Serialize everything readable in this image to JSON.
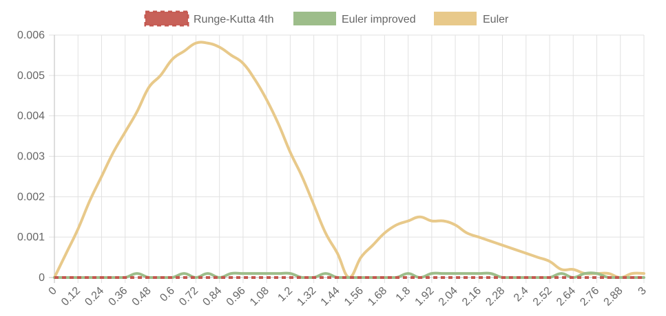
{
  "chart_data": {
    "type": "line",
    "title": "",
    "xlabel": "",
    "ylabel": "",
    "x": [
      0,
      0.06,
      0.12,
      0.18,
      0.24,
      0.3,
      0.36,
      0.42,
      0.48,
      0.54,
      0.6,
      0.66,
      0.72,
      0.78,
      0.84,
      0.9,
      0.96,
      1.02,
      1.08,
      1.14,
      1.2,
      1.26,
      1.32,
      1.38,
      1.44,
      1.5,
      1.56,
      1.62,
      1.68,
      1.74,
      1.8,
      1.86,
      1.92,
      1.98,
      2.04,
      2.1,
      2.16,
      2.22,
      2.28,
      2.34,
      2.4,
      2.46,
      2.52,
      2.58,
      2.64,
      2.7,
      2.76,
      2.82,
      2.88,
      2.94,
      3
    ],
    "x_tick_labels": [
      "0",
      "0.12",
      "0.24",
      "0.36",
      "0.48",
      "0.6",
      "0.72",
      "0.84",
      "0.96",
      "1.08",
      "1.2",
      "1.32",
      "1.44",
      "1.56",
      "1.68",
      "1.8",
      "1.92",
      "2.04",
      "2.16",
      "2.28",
      "2.4",
      "2.52",
      "2.64",
      "2.76",
      "2.88",
      "3"
    ],
    "y_tick_labels": [
      "0",
      "0.001",
      "0.002",
      "0.003",
      "0.004",
      "0.005",
      "0.006"
    ],
    "ylim": [
      0,
      0.006
    ],
    "xlim": [
      0,
      3
    ],
    "grid": true,
    "legend_position": "top",
    "series": [
      {
        "name": "Runge-Kutta 4th",
        "color": "#c45850",
        "dashed": true,
        "values": [
          0,
          0,
          0,
          0,
          0,
          0,
          0,
          0,
          0,
          0,
          0,
          0,
          0,
          0,
          0,
          0,
          0,
          0,
          0,
          0,
          0,
          0,
          0,
          0,
          0,
          0,
          0,
          0,
          0,
          0,
          0,
          0,
          0,
          0,
          0,
          0,
          0,
          0,
          0,
          0,
          0,
          0,
          0,
          0,
          0,
          0,
          0,
          0,
          0,
          0,
          0
        ]
      },
      {
        "name": "Euler improved",
        "color": "#9dbd8a",
        "dashed": false,
        "values": [
          0,
          0,
          0,
          0,
          0,
          0,
          0,
          0.0001,
          0,
          0,
          0,
          0.0001,
          0,
          0.0001,
          0,
          0.0001,
          0.0001,
          0.0001,
          0.0001,
          0.0001,
          0.0001,
          0,
          0,
          0.0001,
          0,
          0,
          0,
          0,
          0,
          0,
          0.0001,
          0,
          0.0001,
          0.0001,
          0.0001,
          0.0001,
          0.0001,
          0.0001,
          0,
          0,
          0,
          0,
          0,
          0.0001,
          0,
          0.0001,
          0.0001,
          0,
          0,
          0,
          0
        ]
      },
      {
        "name": "Euler",
        "color": "#e8c98a",
        "dashed": false,
        "values": [
          0,
          0.0006,
          0.0012,
          0.0019,
          0.0025,
          0.0031,
          0.0036,
          0.0041,
          0.0047,
          0.005,
          0.0054,
          0.0056,
          0.0058,
          0.0058,
          0.0057,
          0.0055,
          0.0053,
          0.0049,
          0.0044,
          0.0038,
          0.0031,
          0.0025,
          0.0018,
          0.0011,
          0.0006,
          0,
          0.0005,
          0.0008,
          0.0011,
          0.0013,
          0.0014,
          0.0015,
          0.0014,
          0.0014,
          0.0013,
          0.0011,
          0.001,
          0.0009,
          0.0008,
          0.0007,
          0.0006,
          0.0005,
          0.0004,
          0.0002,
          0.0002,
          0.0001,
          0.0001,
          0.0001,
          0,
          0.0001,
          0.0001
        ]
      }
    ]
  }
}
